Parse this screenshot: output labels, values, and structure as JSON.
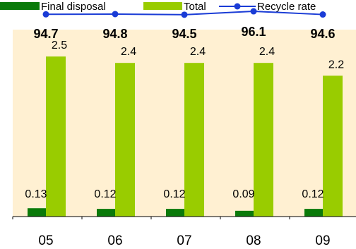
{
  "chart_data": {
    "type": "bar",
    "title": "",
    "xlabel": "",
    "ylabel": "",
    "legend_position": "top",
    "grid": false,
    "categories": [
      "05",
      "06",
      "07",
      "08",
      "09"
    ],
    "series": [
      {
        "name": "Final disposal",
        "kind": "bar",
        "color": "#0a7a0a",
        "values": [
          0.13,
          0.12,
          0.12,
          0.09,
          0.12
        ],
        "labels": [
          "0.13",
          "0.12",
          "0.12",
          "0.09",
          "0.12"
        ]
      },
      {
        "name": "Total",
        "kind": "bar",
        "color": "#99cc00",
        "values": [
          2.5,
          2.4,
          2.4,
          2.4,
          2.2
        ],
        "labels": [
          "2.5",
          "2.4",
          "2.4",
          "2.4",
          "2.2"
        ]
      },
      {
        "name": "Recycle rate",
        "kind": "line",
        "color": "#1a3cd6",
        "values": [
          94.7,
          94.8,
          94.5,
          96.1,
          94.6
        ],
        "labels": [
          "94.7",
          "94.8",
          "94.5",
          "96.1",
          "94.6"
        ]
      }
    ],
    "ylim": [
      0,
      2.92
    ],
    "ylim_rate": [
      0,
      100.4
    ]
  }
}
